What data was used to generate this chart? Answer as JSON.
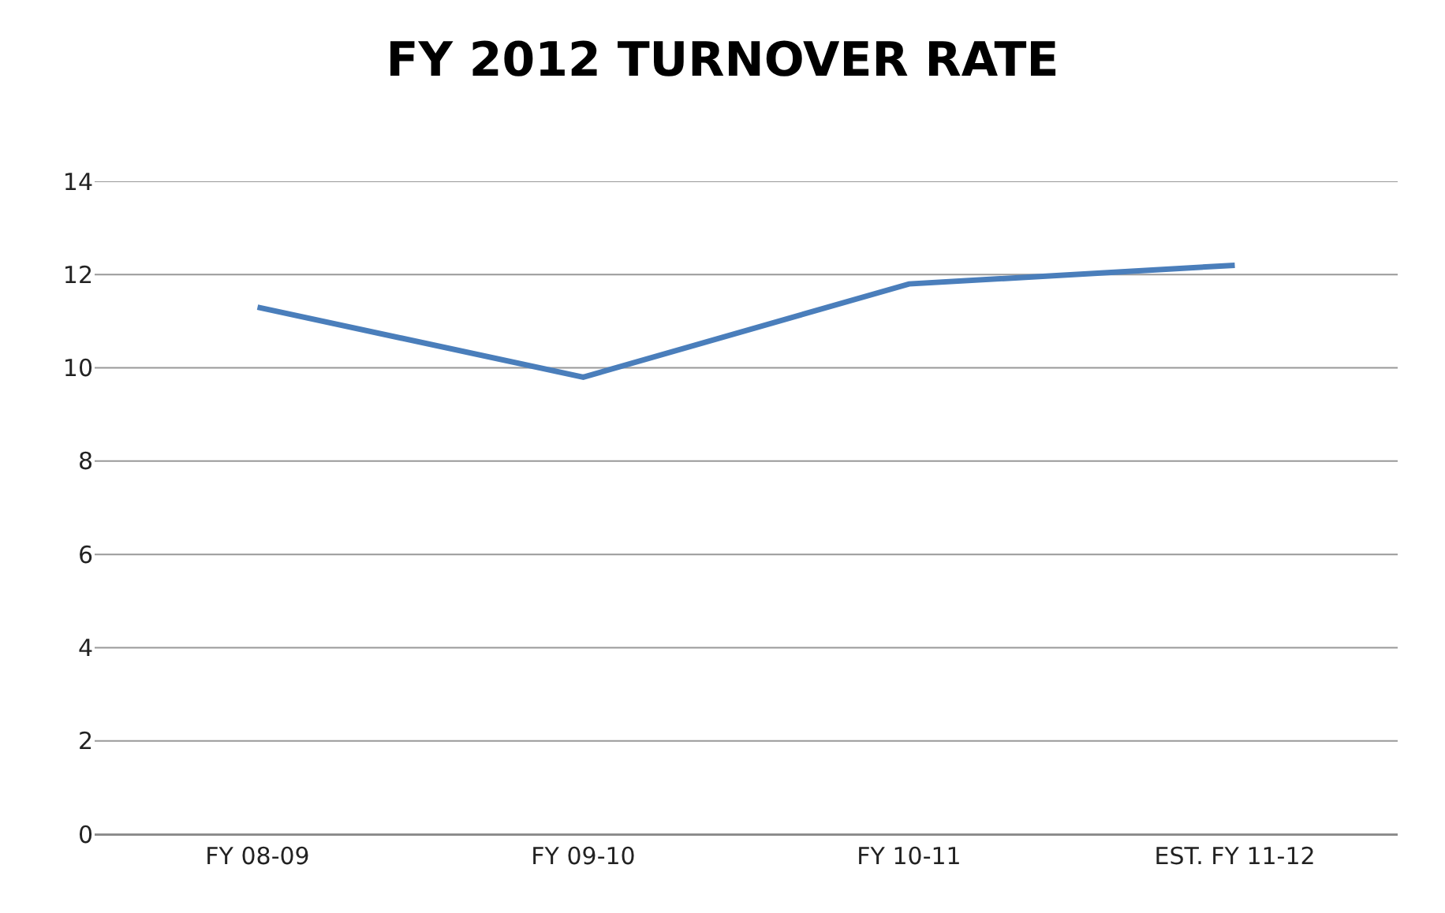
{
  "chart_data": {
    "type": "line",
    "title": "FY 2012 TURNOVER RATE",
    "categories": [
      "FY 08-09",
      "FY 09-10",
      "FY 10-11",
      "EST. FY 11-12"
    ],
    "series": [
      {
        "color": "#4a7ebb",
        "values": [
          11.3,
          9.8,
          11.8,
          12.2
        ]
      }
    ],
    "ylim": [
      0,
      14
    ],
    "yticks": [
      0,
      2,
      4,
      6,
      8,
      10,
      12,
      14
    ],
    "grid": "y",
    "marker": "none",
    "line_style": "solid"
  }
}
